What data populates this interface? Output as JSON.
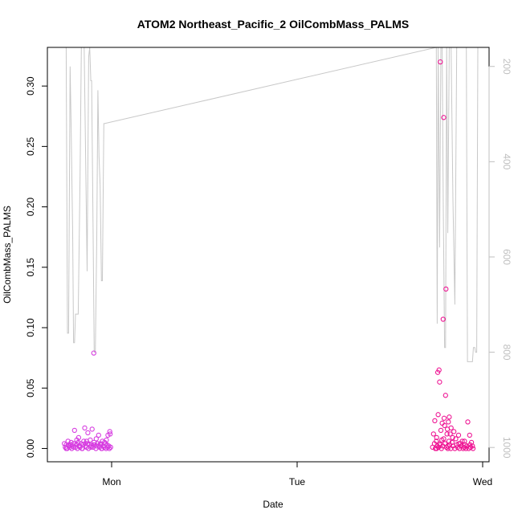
{
  "chart_data": {
    "type": "scatter",
    "title": "ATOM2 Northeast_Pacific_2 OilCombMass_PALMS",
    "xlabel": "Date",
    "ylabel": "OilCombMass_PALMS",
    "x_ticks": [
      "Mon",
      "Tue",
      "Wed"
    ],
    "x_range_days": [
      -0.29,
      2.02
    ],
    "ylim": [
      -0.011,
      0.332
    ],
    "y_ticks": [
      0.0,
      0.05,
      0.1,
      0.15,
      0.2,
      0.25,
      0.3
    ],
    "y_tick_labels": [
      "0.00",
      "0.05",
      "0.10",
      "0.15",
      "0.20",
      "0.25",
      "0.30"
    ],
    "right_axis": {
      "ticks": [
        200,
        400,
        600,
        800,
        1000
      ],
      "range": [
        1030,
        160
      ],
      "color": "#bfbfbf"
    },
    "grid": false,
    "colors": {
      "points_day1": "#d63be0",
      "points_day3": "#ee1493",
      "line": "#c8c8c8",
      "axis": "#000000"
    },
    "series": [
      {
        "kind": "points",
        "color": "#d63be0",
        "points": [
          [
            -0.255,
            0.004
          ],
          [
            -0.25,
            0.001
          ],
          [
            -0.245,
            0.003
          ],
          [
            -0.24,
            0.0
          ],
          [
            -0.235,
            0.006
          ],
          [
            -0.23,
            0.002
          ],
          [
            -0.225,
            0.001
          ],
          [
            -0.22,
            0.003
          ],
          [
            -0.215,
            0.0
          ],
          [
            -0.21,
            0.002
          ],
          [
            -0.205,
            0.004
          ],
          [
            -0.2,
            0.015
          ],
          [
            -0.195,
            0.001
          ],
          [
            -0.19,
            0.003
          ],
          [
            -0.185,
            0.0
          ],
          [
            -0.18,
            0.005
          ],
          [
            -0.175,
            0.002
          ],
          [
            -0.17,
            0.001
          ],
          [
            -0.165,
            0.004
          ],
          [
            -0.16,
            0.0
          ],
          [
            -0.155,
            0.003
          ],
          [
            -0.15,
            0.006
          ],
          [
            -0.145,
            0.017
          ],
          [
            -0.14,
            0.002
          ],
          [
            -0.135,
            0.001
          ],
          [
            -0.13,
            0.004
          ],
          [
            -0.125,
            0.0
          ],
          [
            -0.12,
            0.003
          ],
          [
            -0.115,
            0.007
          ],
          [
            -0.11,
            0.002
          ],
          [
            -0.105,
            0.016
          ],
          [
            -0.1,
            0.001
          ],
          [
            -0.095,
            0.005
          ],
          [
            -0.09,
            0.003
          ],
          [
            -0.085,
            0.0
          ],
          [
            -0.08,
            0.002
          ],
          [
            -0.075,
            0.004
          ],
          [
            -0.07,
            0.011
          ],
          [
            -0.065,
            0.001
          ],
          [
            -0.06,
            0.003
          ],
          [
            -0.055,
            0.0
          ],
          [
            -0.05,
            0.006
          ],
          [
            -0.045,
            0.002
          ],
          [
            -0.04,
            0.001
          ],
          [
            -0.035,
            0.004
          ],
          [
            -0.03,
            0.0
          ],
          [
            -0.025,
            0.003
          ],
          [
            -0.02,
            0.011
          ],
          [
            -0.015,
            0.002
          ],
          [
            -0.01,
            0.014
          ],
          [
            -0.005,
            0.001
          ],
          [
            -0.245,
            0.0
          ],
          [
            -0.232,
            0.003
          ],
          [
            -0.218,
            0.005
          ],
          [
            -0.203,
            0.001
          ],
          [
            -0.188,
            0.007
          ],
          [
            -0.172,
            0.002
          ],
          [
            -0.158,
            0.0
          ],
          [
            -0.142,
            0.004
          ],
          [
            -0.128,
            0.013
          ],
          [
            -0.112,
            0.001
          ],
          [
            -0.098,
            0.003
          ],
          [
            -0.083,
            0.008
          ],
          [
            -0.068,
            0.002
          ],
          [
            -0.052,
            0.0
          ],
          [
            -0.038,
            0.005
          ],
          [
            -0.022,
            0.001
          ],
          [
            -0.008,
            0.012
          ],
          [
            -0.096,
            0.079
          ],
          [
            -0.135,
            0.006
          ],
          [
            -0.178,
            0.009
          ],
          [
            -0.06,
            0.004
          ],
          [
            -0.028,
            0.007
          ],
          [
            -0.012,
            0.0
          ]
        ]
      },
      {
        "kind": "points",
        "color": "#ee1493",
        "points": [
          [
            1.73,
            0.001
          ],
          [
            1.735,
            0.012
          ],
          [
            1.74,
            0.004
          ],
          [
            1.742,
            0.023
          ],
          [
            1.745,
            0.0
          ],
          [
            1.75,
            0.006
          ],
          [
            1.752,
            0.009
          ],
          [
            1.755,
            0.002
          ],
          [
            1.758,
            0.063
          ],
          [
            1.76,
            0.028
          ],
          [
            1.762,
            0.001
          ],
          [
            1.765,
            0.065
          ],
          [
            1.768,
            0.055
          ],
          [
            1.77,
            0.003
          ],
          [
            1.772,
            0.32
          ],
          [
            1.775,
            0.015
          ],
          [
            1.778,
            0.0
          ],
          [
            1.78,
            0.007
          ],
          [
            1.782,
            0.021
          ],
          [
            1.785,
            0.002
          ],
          [
            1.787,
            0.107
          ],
          [
            1.79,
            0.274
          ],
          [
            1.792,
            0.025
          ],
          [
            1.795,
            0.019
          ],
          [
            1.797,
            0.004
          ],
          [
            1.8,
            0.044
          ],
          [
            1.802,
            0.132
          ],
          [
            1.805,
            0.001
          ],
          [
            1.808,
            0.012
          ],
          [
            1.81,
            0.016
          ],
          [
            1.812,
            0.0
          ],
          [
            1.815,
            0.022
          ],
          [
            1.818,
            0.006
          ],
          [
            1.82,
            0.026
          ],
          [
            1.822,
            0.003
          ],
          [
            1.825,
            0.012
          ],
          [
            1.828,
            0.0
          ],
          [
            1.83,
            0.017
          ],
          [
            1.835,
            0.005
          ],
          [
            1.84,
            0.002
          ],
          [
            1.845,
            0.014
          ],
          [
            1.85,
            0.0
          ],
          [
            1.855,
            0.008
          ],
          [
            1.86,
            0.003
          ],
          [
            1.865,
            0.001
          ],
          [
            1.87,
            0.011
          ],
          [
            1.875,
            0.0
          ],
          [
            1.88,
            0.004
          ],
          [
            1.885,
            0.002
          ],
          [
            1.89,
            0.006
          ],
          [
            1.895,
            0.0
          ],
          [
            1.9,
            0.001
          ],
          [
            1.905,
            0.003
          ],
          [
            1.91,
            0.0
          ],
          [
            1.915,
            0.002
          ],
          [
            1.92,
            0.022
          ],
          [
            1.925,
            0.0
          ],
          [
            1.93,
            0.011
          ],
          [
            1.935,
            0.001
          ],
          [
            1.94,
            0.005
          ],
          [
            1.945,
            0.002
          ],
          [
            1.948,
            0.0
          ],
          [
            1.752,
            0.0
          ],
          [
            1.768,
            0.004
          ],
          [
            1.79,
            0.008
          ],
          [
            1.812,
            0.002
          ],
          [
            1.838,
            0.009
          ],
          [
            1.872,
            0.004
          ],
          [
            1.902,
            0.006
          ],
          [
            1.932,
            0.003
          ]
        ]
      },
      {
        "kind": "line",
        "axis": "right",
        "color": "#c8c8c8",
        "points": [
          [
            -0.252,
            160
          ],
          [
            -0.245,
            160
          ],
          [
            -0.238,
            760
          ],
          [
            -0.232,
            760
          ],
          [
            -0.224,
            200
          ],
          [
            -0.218,
            330
          ],
          [
            -0.21,
            550
          ],
          [
            -0.205,
            780
          ],
          [
            -0.2,
            780
          ],
          [
            -0.195,
            720
          ],
          [
            -0.188,
            720
          ],
          [
            -0.18,
            720
          ],
          [
            -0.17,
            430
          ],
          [
            -0.163,
            160
          ],
          [
            -0.155,
            160
          ],
          [
            -0.148,
            160
          ],
          [
            -0.14,
            400
          ],
          [
            -0.132,
            630
          ],
          [
            -0.124,
            180
          ],
          [
            -0.118,
            160
          ],
          [
            -0.112,
            230
          ],
          [
            -0.108,
            230
          ],
          [
            -0.1,
            540
          ],
          [
            -0.094,
            800
          ],
          [
            -0.088,
            800
          ],
          [
            -0.08,
            560
          ],
          [
            -0.074,
            250
          ],
          [
            -0.068,
            390
          ],
          [
            -0.062,
            450
          ],
          [
            -0.055,
            650
          ],
          [
            -0.05,
            650
          ],
          [
            -0.046,
            480
          ],
          [
            -0.042,
            320
          ],
          [
            -0.039,
            320
          ],
          [
            1.75,
            160
          ],
          [
            1.755,
            740
          ],
          [
            1.76,
            160
          ],
          [
            1.768,
            580
          ],
          [
            1.775,
            160
          ],
          [
            1.782,
            160
          ],
          [
            1.788,
            500
          ],
          [
            1.795,
            790
          ],
          [
            1.8,
            790
          ],
          [
            1.806,
            160
          ],
          [
            1.812,
            550
          ],
          [
            1.82,
            160
          ],
          [
            1.83,
            160
          ],
          [
            1.84,
            480
          ],
          [
            1.85,
            700
          ],
          [
            1.86,
            160
          ],
          [
            1.87,
            160
          ],
          [
            1.875,
            160
          ],
          [
            1.885,
            160
          ],
          [
            1.895,
            160
          ],
          [
            1.905,
            160
          ],
          [
            1.912,
            160
          ],
          [
            1.918,
            820
          ],
          [
            1.925,
            820
          ],
          [
            1.932,
            820
          ],
          [
            1.945,
            820
          ],
          [
            1.95,
            790
          ],
          [
            1.958,
            790
          ],
          [
            1.962,
            800
          ],
          [
            1.968,
            800
          ],
          [
            1.974,
            160
          ],
          [
            2.0,
            160
          ]
        ]
      }
    ]
  }
}
